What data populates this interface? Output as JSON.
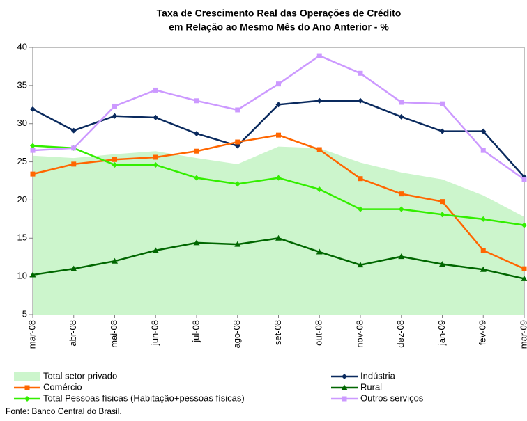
{
  "chart_data": {
    "type": "line",
    "title": [
      "Taxa de Crescimento Real das Operações de Crédito",
      "em Relação ao Mesmo Mês do Ano Anterior - %"
    ],
    "categories": [
      "mar-08",
      "abr-08",
      "mai-08",
      "jun-08",
      "jul-08",
      "ago-08",
      "set-08",
      "out-08",
      "nov-08",
      "dez-08",
      "jan-09",
      "fev-09",
      "mar-09"
    ],
    "ylim": [
      5,
      40
    ],
    "yticks": [
      5,
      10,
      15,
      20,
      25,
      30,
      35,
      40
    ],
    "series": [
      {
        "name": "Total setor privado",
        "color": "#ccf5cc",
        "style": "area",
        "values": [
          25.8,
          25.5,
          26.0,
          26.4,
          25.5,
          24.7,
          27.0,
          26.8,
          24.9,
          23.6,
          22.7,
          20.6,
          17.8
        ]
      },
      {
        "name": "Indústria",
        "color": "#0a2a5e",
        "style": "line",
        "marker": "diamond",
        "values": [
          31.9,
          29.1,
          31.0,
          30.8,
          28.7,
          27.1,
          32.5,
          33.0,
          33.0,
          30.9,
          29.0,
          29.0,
          23.0
        ]
      },
      {
        "name": "Comércio",
        "color": "#ff6600",
        "style": "line",
        "marker": "square",
        "values": [
          23.4,
          24.7,
          25.3,
          25.6,
          26.4,
          27.6,
          28.5,
          26.6,
          22.8,
          20.8,
          19.8,
          13.4,
          11.0
        ]
      },
      {
        "name": "Rural",
        "color": "#006600",
        "style": "line",
        "marker": "triangle",
        "values": [
          10.2,
          11.0,
          12.0,
          13.4,
          14.4,
          14.2,
          15.0,
          13.2,
          11.5,
          12.6,
          11.6,
          10.9,
          9.7
        ]
      },
      {
        "name": "Total Pessoas físicas (Habitação+pessoas físicas)",
        "color": "#33ee00",
        "style": "line",
        "marker": "diamond",
        "values": [
          27.1,
          26.8,
          24.6,
          24.6,
          22.9,
          22.1,
          22.9,
          21.4,
          18.8,
          18.8,
          18.1,
          17.5,
          16.7
        ]
      },
      {
        "name": "Outros serviços",
        "color": "#cc99ff",
        "style": "line",
        "marker": "square",
        "values": [
          26.5,
          26.8,
          32.3,
          34.4,
          33.0,
          31.8,
          35.2,
          38.9,
          36.6,
          32.8,
          32.6,
          26.5,
          22.7
        ]
      }
    ],
    "source": "Fonte: Banco Central do Brasil."
  }
}
